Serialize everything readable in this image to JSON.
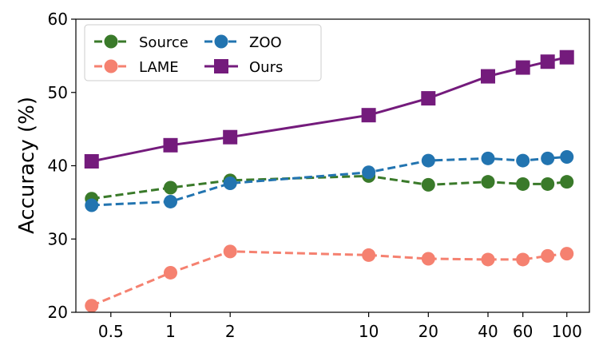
{
  "chart_data": {
    "type": "line",
    "title": "",
    "xlabel": "",
    "ylabel": "Accuracy (%)",
    "xscale": "log",
    "x": [
      0.4,
      1,
      2,
      10,
      20,
      40,
      60,
      80,
      100
    ],
    "xticks": [
      0.5,
      1,
      2,
      10,
      20,
      40,
      60,
      100
    ],
    "xtick_labels": [
      "0.5",
      "1",
      "2",
      "10",
      "20",
      "40",
      "60",
      "100"
    ],
    "ylim": [
      20,
      60
    ],
    "yticks": [
      20,
      30,
      40,
      50,
      60
    ],
    "ytick_labels": [
      "20",
      "30",
      "40",
      "50",
      "60"
    ],
    "grid": false,
    "legend_placement": "top-left",
    "series": [
      {
        "name": "Source",
        "color": "#3a7a2a",
        "line_style": "dashed",
        "marker": "circle",
        "values": [
          35.5,
          37.0,
          38.0,
          38.6,
          37.4,
          37.8,
          37.5,
          37.5,
          37.8
        ]
      },
      {
        "name": "LAME",
        "color": "#f58170",
        "line_style": "dashed",
        "marker": "circle",
        "values": [
          20.9,
          25.4,
          28.3,
          27.8,
          27.3,
          27.2,
          27.2,
          27.7,
          28.0
        ]
      },
      {
        "name": "ZOO",
        "color": "#2274b0",
        "line_style": "dashed",
        "marker": "circle",
        "values": [
          34.6,
          35.1,
          37.6,
          39.1,
          40.7,
          41.0,
          40.7,
          41.0,
          41.2
        ]
      },
      {
        "name": "Ours",
        "color": "#741b7c",
        "line_style": "solid",
        "marker": "square",
        "values": [
          40.6,
          42.8,
          43.9,
          46.9,
          49.2,
          52.2,
          53.4,
          54.2,
          54.8
        ]
      }
    ]
  }
}
